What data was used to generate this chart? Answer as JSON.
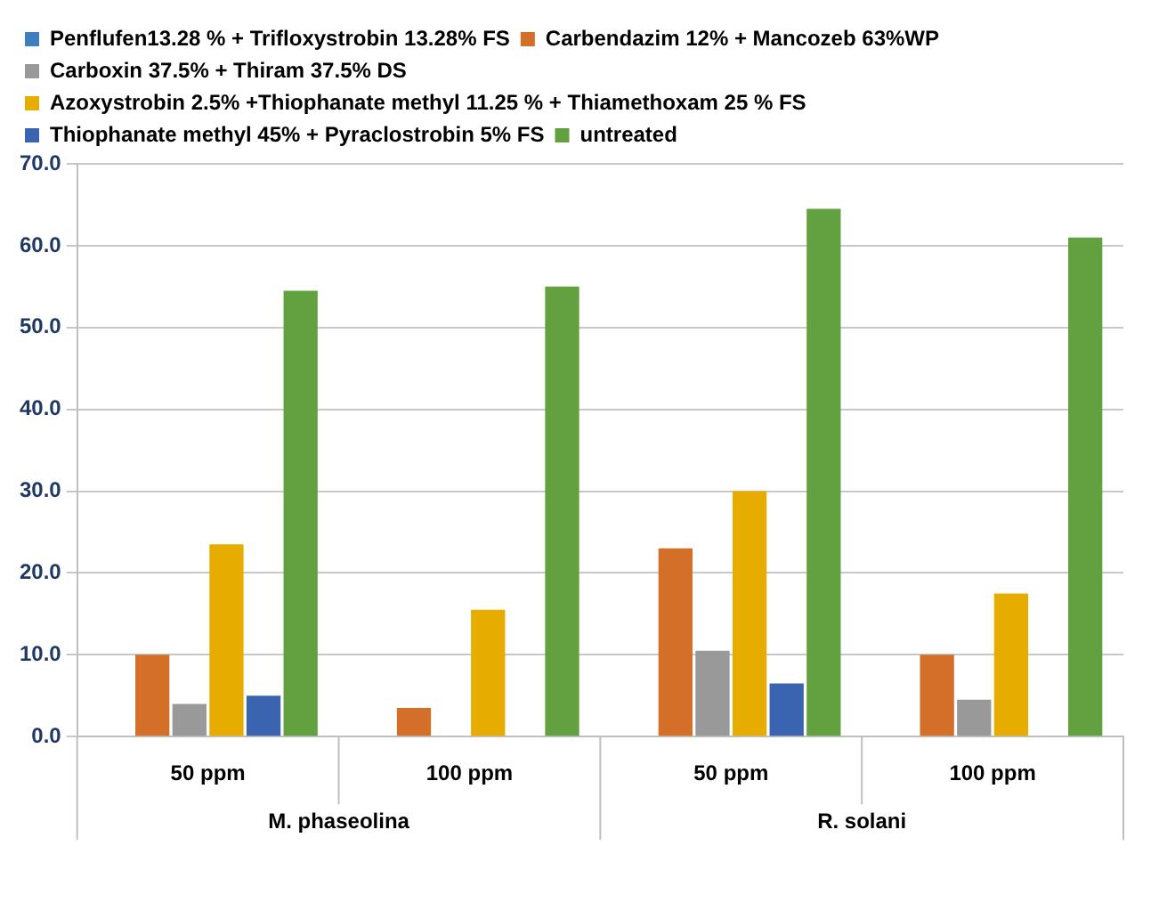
{
  "chart_data": {
    "type": "bar",
    "categories": [
      "50 ppm",
      "100 ppm",
      "50 ppm",
      "100 ppm"
    ],
    "annotations": [
      "M. phaseolina",
      "R. solani"
    ],
    "series": [
      {
        "name": "Penflufen13.28 % + Trifloxystrobin 13.28% FS",
        "color": "#3f7fbf",
        "values": [
          0,
          0,
          0,
          0
        ]
      },
      {
        "name": "Carbendazim 12% + Mancozeb 63%WP",
        "color": "#d46f2a",
        "values": [
          10,
          3.5,
          23,
          10
        ]
      },
      {
        "name": "Carboxin 37.5% + Thiram 37.5% DS",
        "color": "#999999",
        "values": [
          4,
          0,
          10.5,
          4.5
        ]
      },
      {
        "name": "Azoxystrobin 2.5% +Thiophanate methyl 11.25 % + Thiamethoxam 25 % FS",
        "color": "#e6ac00",
        "values": [
          23.5,
          15.5,
          30,
          17.5
        ]
      },
      {
        "name": "Thiophanate methyl 45% + Pyraclostrobin 5% FS",
        "color": "#3a64b0",
        "values": [
          5,
          0,
          6.5,
          0
        ]
      },
      {
        "name": "untreated",
        "color": "#63a03f",
        "values": [
          54.5,
          55,
          64.5,
          61
        ]
      }
    ],
    "ylim": [
      0,
      70
    ],
    "yticks": [
      {
        "value": 0,
        "label": "0.0"
      },
      {
        "value": 10,
        "label": "10.0"
      },
      {
        "value": 20,
        "label": "20.0"
      },
      {
        "value": 30,
        "label": "30.0"
      },
      {
        "value": 40,
        "label": "40.0"
      },
      {
        "value": 50,
        "label": "50.0"
      },
      {
        "value": 60,
        "label": "60.0"
      },
      {
        "value": 70,
        "label": "70.0"
      }
    ],
    "grid": "y",
    "legend": "top left"
  }
}
